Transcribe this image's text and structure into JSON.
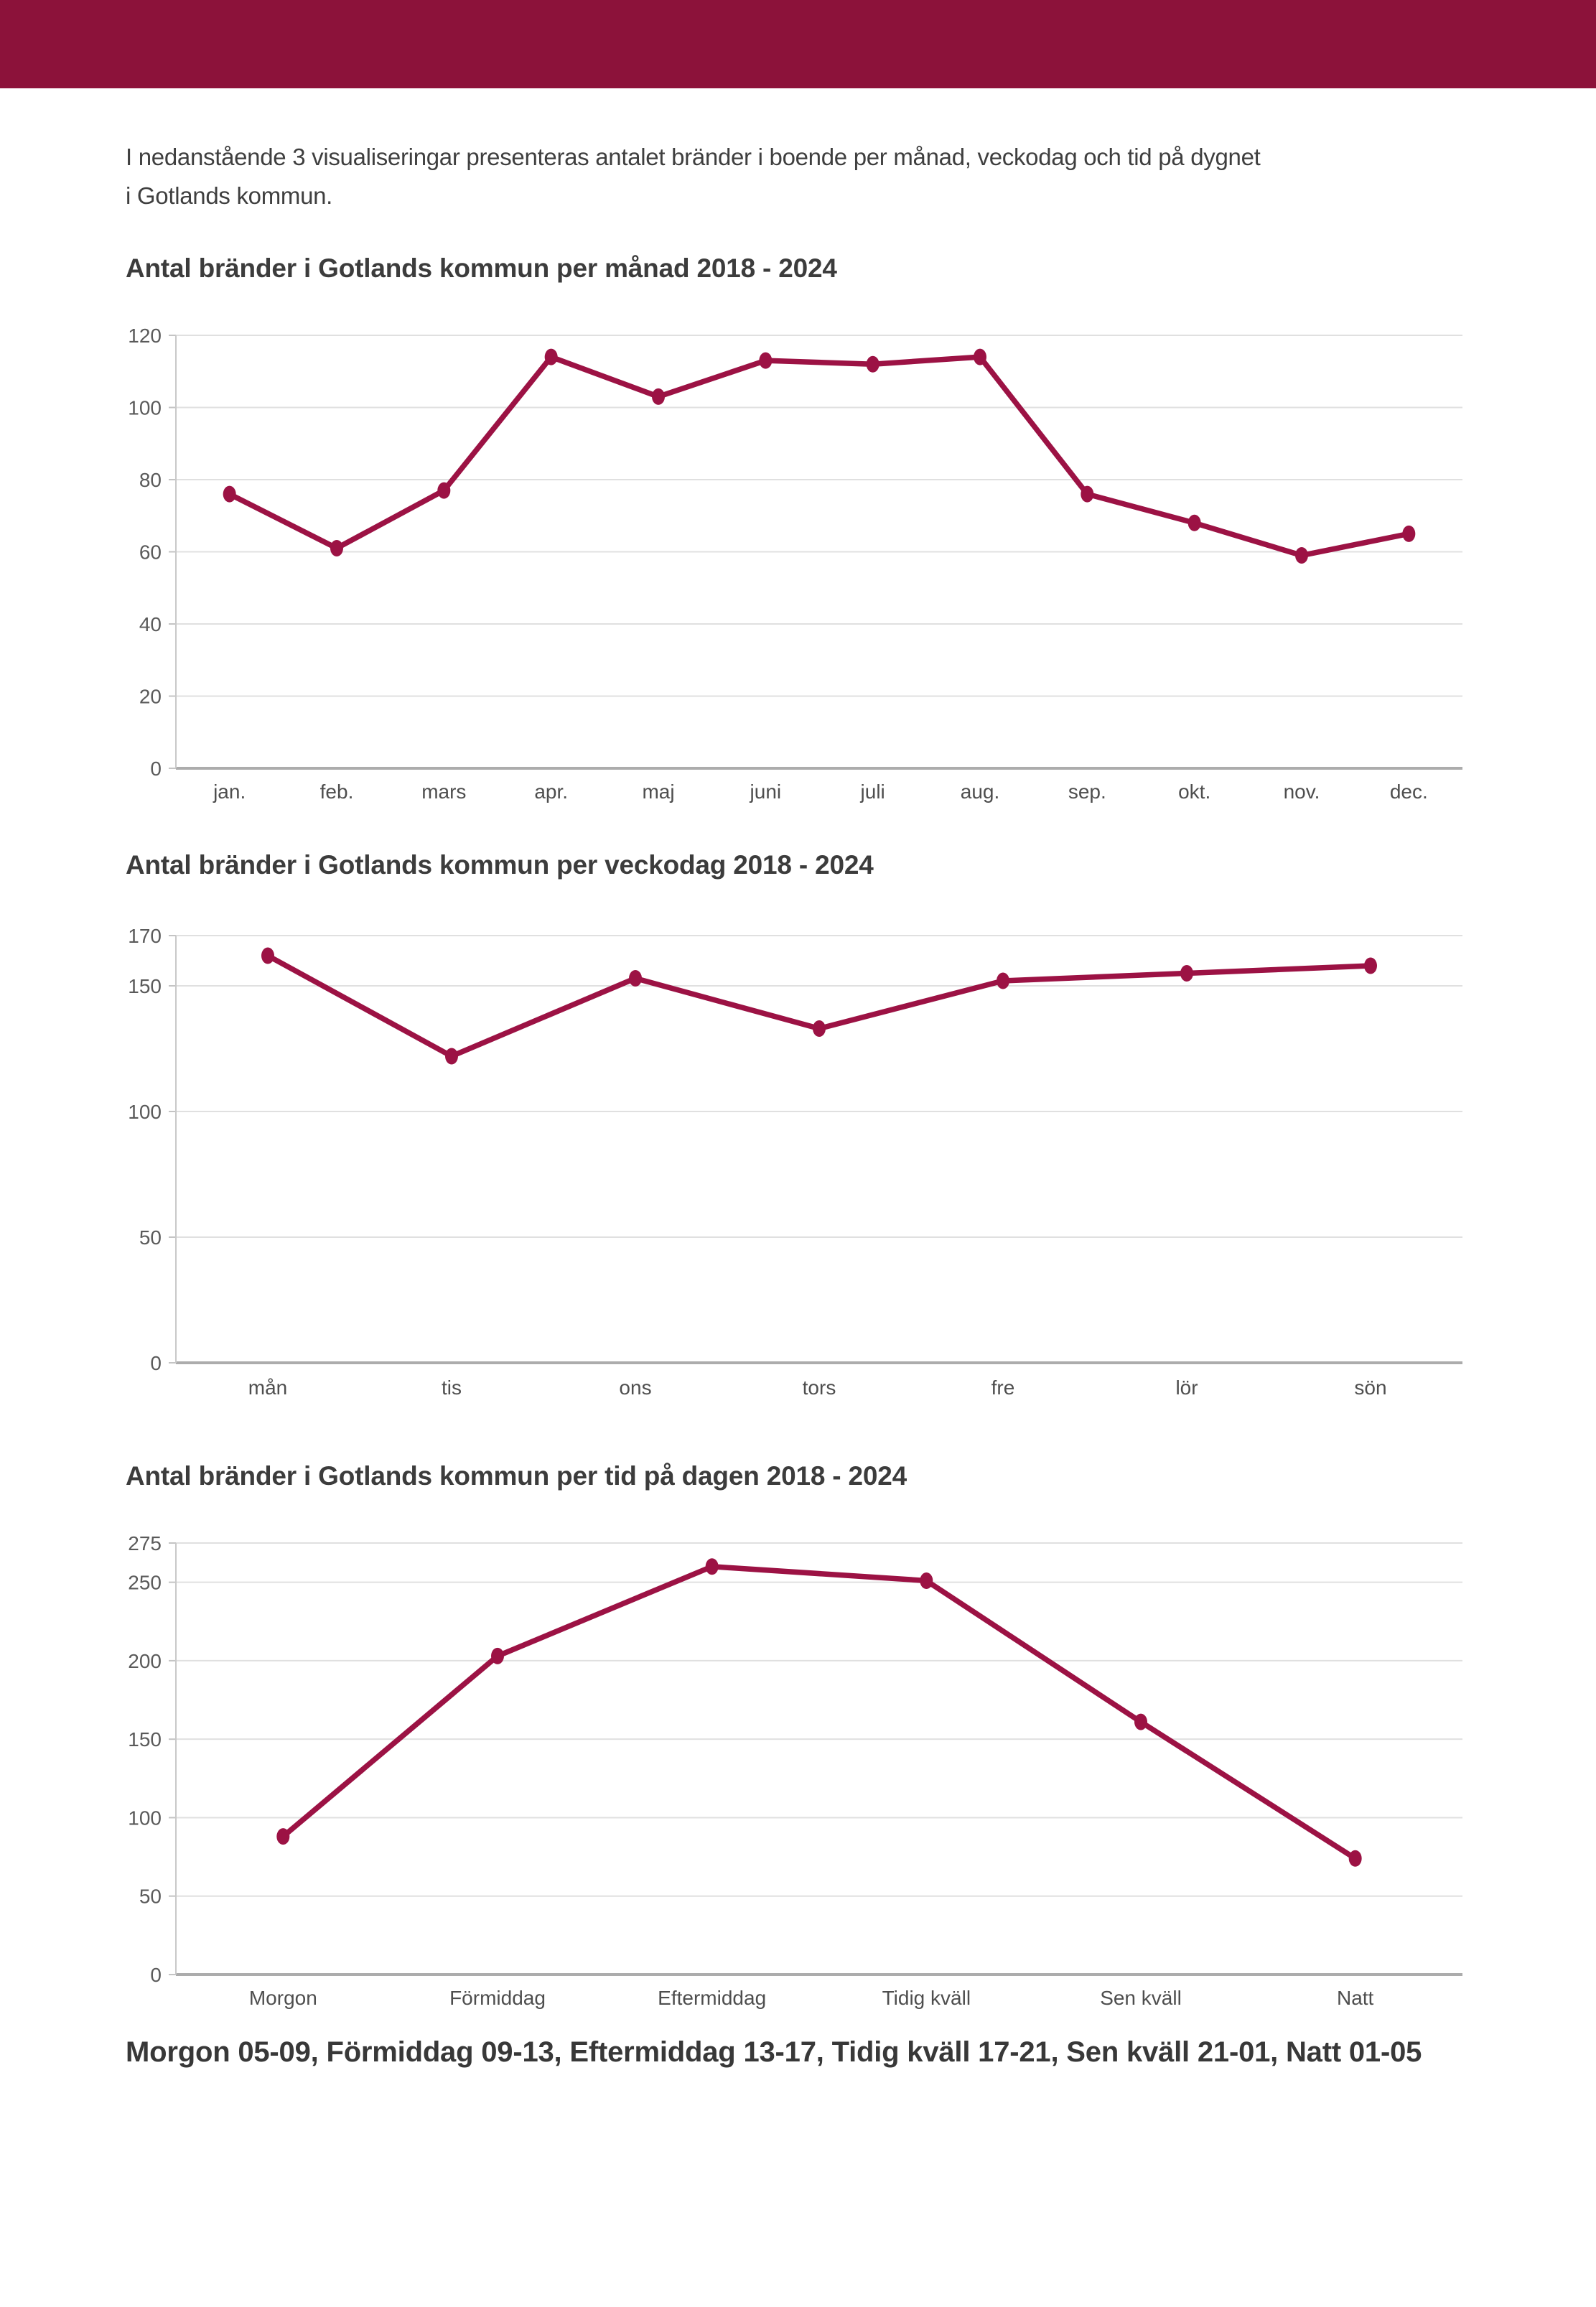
{
  "banner": {
    "color": "#8C123A"
  },
  "intro": {
    "line1": "I nedanstående 3 visualiseringar presenteras antalet bränder i boende per månad, veckodag och tid på dygnet",
    "line2": "i Gotlands kommun."
  },
  "footer": {
    "text": "Morgon 05-09, Förmiddag 09-13, Eftermiddag 13-17, Tidig kväll 17-21, Sen kväll 21-01, Natt 01-05"
  },
  "chart_data": [
    {
      "type": "line",
      "title": "Antal bränder i Gotlands kommun per månad 2018 - 2024",
      "categories": [
        "jan.",
        "feb.",
        "mars",
        "apr.",
        "maj",
        "juni",
        "juli",
        "aug.",
        "sep.",
        "okt.",
        "nov.",
        "dec."
      ],
      "values": [
        76,
        61,
        77,
        114,
        103,
        113,
        112,
        114,
        76,
        68,
        59,
        65
      ],
      "xlabel": "",
      "ylabel": "",
      "y_ticks": [
        0,
        20,
        40,
        60,
        80,
        100,
        120
      ],
      "ylim": [
        0,
        120
      ],
      "grid": true,
      "legend": "none",
      "line_color": "#9C1244"
    },
    {
      "type": "line",
      "title": "Antal bränder i Gotlands kommun per veckodag 2018 - 2024",
      "categories": [
        "mån",
        "tis",
        "ons",
        "tors",
        "fre",
        "lör",
        "sön"
      ],
      "values": [
        162,
        122,
        153,
        133,
        152,
        155,
        158
      ],
      "xlabel": "",
      "ylabel": "",
      "y_ticks": [
        0,
        50,
        100,
        150,
        170
      ],
      "ylim": [
        0,
        170
      ],
      "grid": true,
      "legend": "none",
      "line_color": "#9C1244"
    },
    {
      "type": "line",
      "title": "Antal bränder i Gotlands kommun per tid på dagen 2018 - 2024",
      "categories": [
        "Morgon",
        "Förmiddag",
        "Eftermiddag",
        "Tidig kväll",
        "Sen kväll",
        "Natt"
      ],
      "values": [
        88,
        203,
        260,
        251,
        161,
        74
      ],
      "xlabel": "",
      "ylabel": "",
      "y_ticks": [
        0,
        50,
        100,
        150,
        200,
        250,
        275
      ],
      "ylim": [
        0,
        275
      ],
      "grid": true,
      "legend": "none",
      "line_color": "#9C1244"
    }
  ]
}
